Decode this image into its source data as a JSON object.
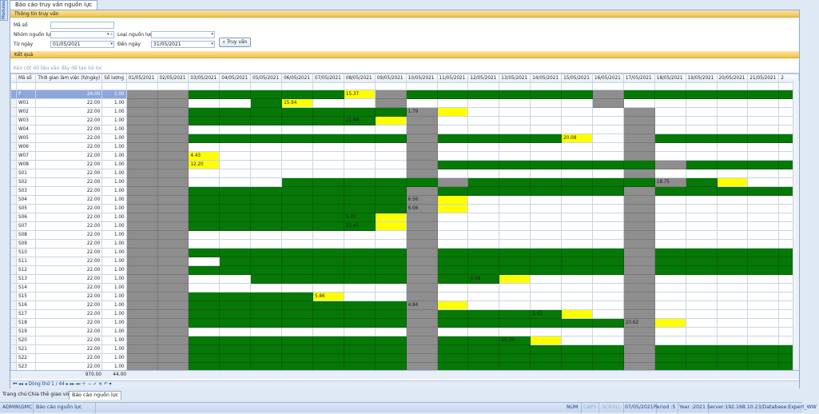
{
  "side_tab": "Modules",
  "doc_tab": "Báo cáo truy vấn nguồn lực",
  "query": {
    "header": "Thông tin truy vấn",
    "ma_so_label": "Mã số",
    "ma_so_value": "",
    "nhom_label": "Nhóm nguồn lực",
    "nhom_value": "",
    "loai_label": "Loại nguồn lực",
    "loai_value": "",
    "tu_ngay_label": "Từ ngày",
    "tu_ngay_value": "01/05/2021",
    "den_ngay_label": "Đến ngày",
    "den_ngay_value": "31/05/2021",
    "search_button": "Truy vấn"
  },
  "result": {
    "header": "Kết quả",
    "drag_hint": "Kéo cột dữ liệu vào đây để tạo bộ lọc"
  },
  "grid": {
    "columns": [
      "Mã số",
      "Thời gian làm việc (h/ngày)",
      "Số lượng"
    ],
    "dates": [
      "01/05/2021",
      "02/05/2021",
      "03/05/2021",
      "04/05/2021",
      "05/05/2021",
      "06/05/2021",
      "07/05/2021",
      "08/05/2021",
      "09/05/2021",
      "10/05/2021",
      "11/05/2021",
      "12/05/2021",
      "13/05/2021",
      "14/05/2021",
      "15/05/2021",
      "16/05/2021",
      "17/05/2021",
      "18/05/2021",
      "19/05/2021",
      "20/05/2021",
      "21/05/2021",
      "2"
    ],
    "legend": {
      "s": "#8e8e8e",
      "g": "#067806",
      "y": "#ffff00",
      "w": "#ffffff"
    },
    "rows": [
      {
        "code": "P",
        "hours": "24.00",
        "qty": "1.00",
        "cells": "ssgggggYsggggggsggggggg",
        "vals": {
          "7": "15.37"
        },
        "selected": true
      },
      {
        "code": "W01",
        "hours": "22.00",
        "qty": "1.00",
        "cells": "sswwgYwwswwwwwwswwwwwww",
        "vals": {
          "5": "15.94"
        }
      },
      {
        "code": "W02",
        "hours": "22.00",
        "qty": "1.00",
        "cells": "ssgggggggsYwwwwwswwwwww",
        "vals": {
          "9": "1.79"
        }
      },
      {
        "code": "W03",
        "hours": "22.00",
        "qty": "1.00",
        "cells": "ssggggggYswwwwwwswwwwww",
        "vals": {
          "7": "21.90"
        }
      },
      {
        "code": "W04",
        "hours": "22.00",
        "qty": "1.00",
        "cells": "sswwwwwwwswwwwwwswwwwww",
        "vals": {}
      },
      {
        "code": "W05",
        "hours": "22.00",
        "qty": "1.00",
        "cells": "ssgggggggsggggYwsgggggg",
        "vals": {
          "14": "20.08"
        }
      },
      {
        "code": "W06",
        "hours": "22.00",
        "qty": "1.00",
        "cells": "sswwwwwwwswwwwwwswwwwww",
        "vals": {}
      },
      {
        "code": "W07",
        "hours": "22.00",
        "qty": "1.00",
        "cells": "ssYwwwwwwswwwwwwswwwwww",
        "vals": {
          "2": "4.43"
        }
      },
      {
        "code": "W08",
        "hours": "22.00",
        "qty": "1.00",
        "cells": "ssYwwwwwwsgggggggsgggggg",
        "vals": {
          "2": "12.20"
        }
      },
      {
        "code": "S01",
        "hours": "22.00",
        "qty": "1.00",
        "cells": "sswwwwwwwswwwwwwswwwwww",
        "vals": {}
      },
      {
        "code": "S02",
        "hours": "22.00",
        "qty": "1.00",
        "cells": "sswwwgggggsggggggsgYwwww",
        "vals": {
          "17": "18.75"
        }
      },
      {
        "code": "S03",
        "hours": "22.00",
        "qty": "1.00",
        "cells": "ssgggggggsggggggsggggggg",
        "vals": {}
      },
      {
        "code": "S04",
        "hours": "22.00",
        "qty": "1.00",
        "cells": "ssgggggggsYwwwwwswwwwww",
        "vals": {
          "9": "6.56"
        }
      },
      {
        "code": "S05",
        "hours": "22.00",
        "qty": "1.00",
        "cells": "ssgggggggsYwwwwwswwwwww",
        "vals": {
          "9": "6.06"
        }
      },
      {
        "code": "S06",
        "hours": "22.00",
        "qty": "1.00",
        "cells": "ssggggggYswwwwwwswwwwww",
        "vals": {
          "7": "5.35"
        }
      },
      {
        "code": "S07",
        "hours": "22.00",
        "qty": "1.00",
        "cells": "ssggggggYswwwwwwswwwwww",
        "vals": {
          "7": "21.47"
        }
      },
      {
        "code": "S08",
        "hours": "22.00",
        "qty": "1.00",
        "cells": "sswwwwwwwswwwwwwswwwwww",
        "vals": {}
      },
      {
        "code": "S09",
        "hours": "22.00",
        "qty": "1.00",
        "cells": "sswwwwwwwswwwwwwswwwwww",
        "vals": {}
      },
      {
        "code": "S10",
        "hours": "22.00",
        "qty": "1.00",
        "cells": "ssgggggggsggggggsggggggg",
        "vals": {}
      },
      {
        "code": "S11",
        "hours": "22.00",
        "qty": "1.00",
        "cells": "sswggggggsggggggsggggggg",
        "vals": {}
      },
      {
        "code": "S12",
        "hours": "22.00",
        "qty": "1.00",
        "cells": "ssgggggggsggggggsggggggg",
        "vals": {}
      },
      {
        "code": "S13",
        "hours": "22.00",
        "qty": "1.00",
        "cells": "sswwgggggsggYwwwswwwwww",
        "vals": {
          "11": "0.08"
        }
      },
      {
        "code": "S14",
        "hours": "22.00",
        "qty": "1.00",
        "cells": "sswwwwwwwswwwwwwswwwwww",
        "vals": {}
      },
      {
        "code": "S15",
        "hours": "22.00",
        "qty": "1.00",
        "cells": "ssggggYwwswwwwwwswwwwww",
        "vals": {
          "6": "5.86"
        }
      },
      {
        "code": "S16",
        "hours": "22.00",
        "qty": "1.00",
        "cells": "ssgggggggsYwwwwwswwwwww",
        "vals": {
          "9": "4.84"
        }
      },
      {
        "code": "S17",
        "hours": "22.00",
        "qty": "1.00",
        "cells": "ssgggggggsggggYwswwwwww",
        "vals": {
          "13": "2.02"
        }
      },
      {
        "code": "S18",
        "hours": "22.00",
        "qty": "1.00",
        "cells": "ssgggggggsggggggsYwwwww",
        "vals": {
          "16": "20.62"
        }
      },
      {
        "code": "S19",
        "hours": "22.00",
        "qty": "1.00",
        "cells": "sswwwwwwwswwwwwwswwwwww",
        "vals": {}
      },
      {
        "code": "S20",
        "hours": "22.00",
        "qty": "1.00",
        "cells": "ssgggggggsgggYwwswwwwww",
        "vals": {
          "12": "15.34"
        }
      },
      {
        "code": "S21",
        "hours": "22.00",
        "qty": "1.00",
        "cells": "ssgggggggsggggggsggggggg",
        "vals": {}
      },
      {
        "code": "S22",
        "hours": "22.00",
        "qty": "1.00",
        "cells": "ssgggggggsggggggsggggggg",
        "vals": {}
      },
      {
        "code": "S23",
        "hours": "22.00",
        "qty": "1.00",
        "cells": "ssgggggggsggggggsggggggg",
        "vals": {}
      }
    ],
    "totals": {
      "hours": "970.00",
      "qty": "44.00"
    },
    "nav_text": "Dòng thứ 1 / 44"
  },
  "bottom_tabs": [
    "Trang chủ",
    "Chia thẻ giao việc",
    "Báo cáo nguồn lực"
  ],
  "status": {
    "user": "ADMIN\\GMC",
    "screen": "Báo cáo nguồn lực",
    "num": "NUM",
    "caps": "CAPS",
    "scroll": "SCROLL",
    "date": "07/05/2021",
    "period": "Period :5",
    "year": "Year :2021",
    "server": "Server:192.168.10.23/Database:Expert_WW"
  }
}
